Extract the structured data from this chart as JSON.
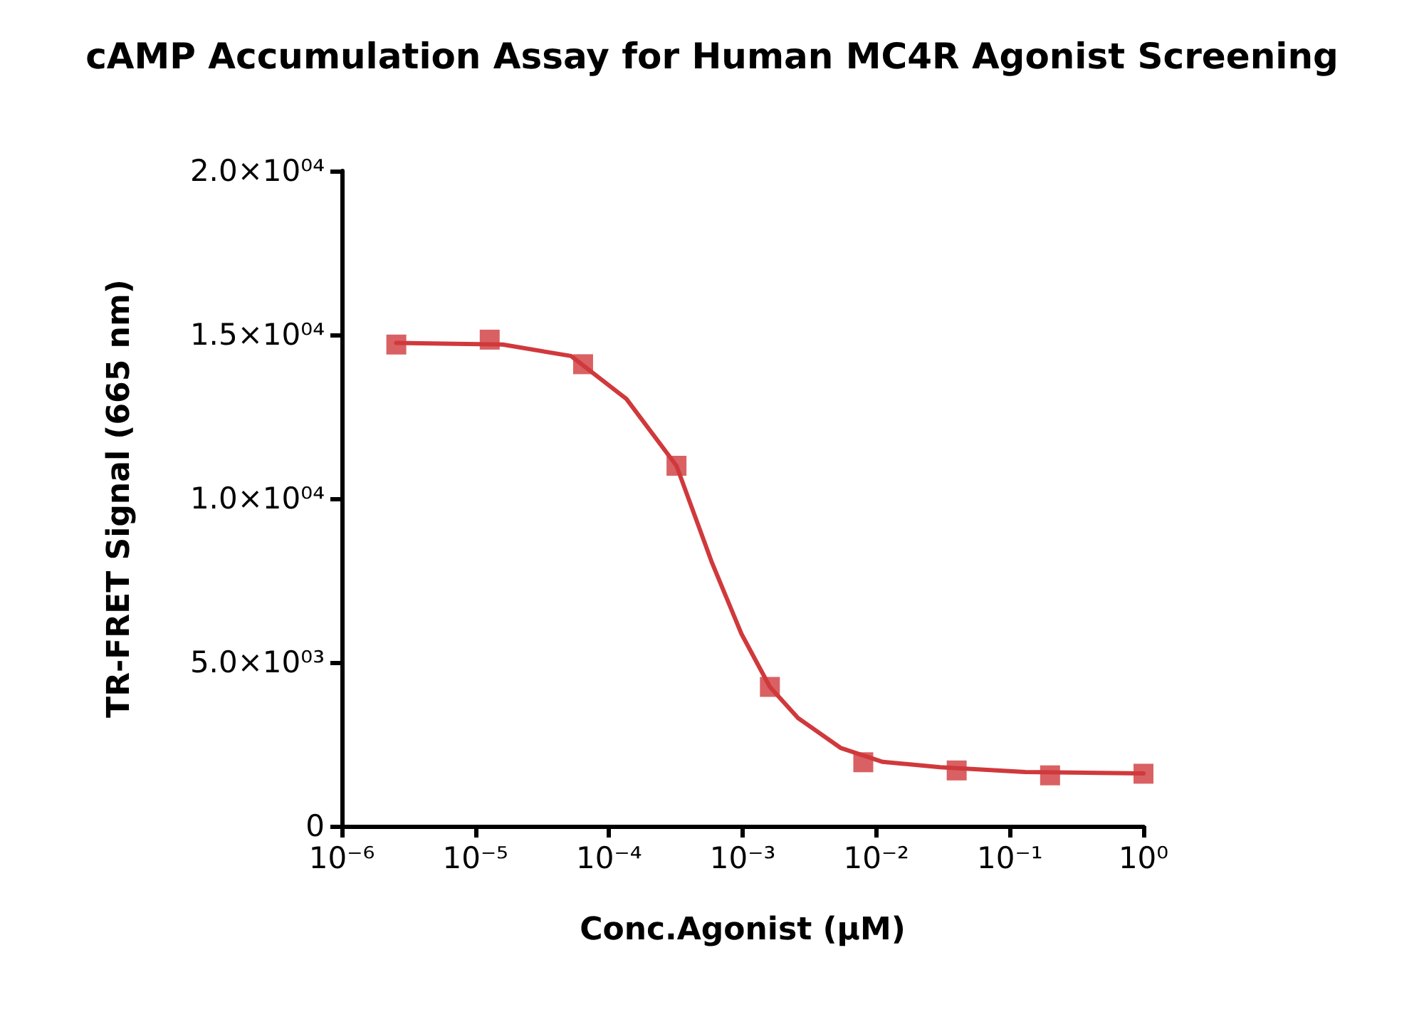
{
  "chart_data": {
    "type": "scatter",
    "title": "cAMP Accumulation Assay for Human MC4R Agonist Screening",
    "xlabel": "Conc.Agonist (µM)",
    "ylabel": "TR-FRET Signal (665 nm)",
    "log": "x",
    "marker": "square",
    "xlim": [
      1e-06,
      1
    ],
    "ylim": [
      0,
      20000
    ],
    "xticks": [
      {
        "value": 1e-06,
        "label": "10⁻⁶"
      },
      {
        "value": 1e-05,
        "label": "10⁻⁵"
      },
      {
        "value": 0.0001,
        "label": "10⁻⁴"
      },
      {
        "value": 0.001,
        "label": "10⁻³"
      },
      {
        "value": 0.01,
        "label": "10⁻²"
      },
      {
        "value": 0.1,
        "label": "10⁻¹"
      },
      {
        "value": 1,
        "label": "10⁰"
      }
    ],
    "yticks": [
      0,
      {
        "value": 5000,
        "label": "5.0×10⁰³"
      },
      {
        "value": 10000,
        "label": "1.0×10⁰⁴"
      },
      {
        "value": 15000,
        "label": "1.5×10⁰⁴"
      },
      {
        "value": 20000,
        "label": "2.0×10⁰⁴"
      }
    ],
    "series": [
      {
        "color": "#d0393c",
        "x": [
          2.56e-06,
          1.28e-05,
          6.4e-05,
          0.00032,
          0.0016,
          0.008,
          0.04,
          0.2,
          1
        ],
        "values": [
          14700,
          14850,
          14100,
          11000,
          4250,
          1950,
          1700,
          1550,
          1600
        ]
      },
      {
        "type": "line",
        "color": "#d0393c",
        "marker": "none",
        "x": [
          2.56e-06,
          1.6e-05,
          5.2e-05,
          0.000135,
          0.00032,
          0.00059,
          0.00098,
          0.0016,
          0.0026,
          0.0054,
          0.0112,
          0.03,
          0.13,
          1
        ],
        "values": [
          14750,
          14700,
          14350,
          13040,
          11000,
          8040,
          5870,
          4250,
          3300,
          2390,
          1960,
          1800,
          1650,
          1610
        ]
      }
    ]
  }
}
